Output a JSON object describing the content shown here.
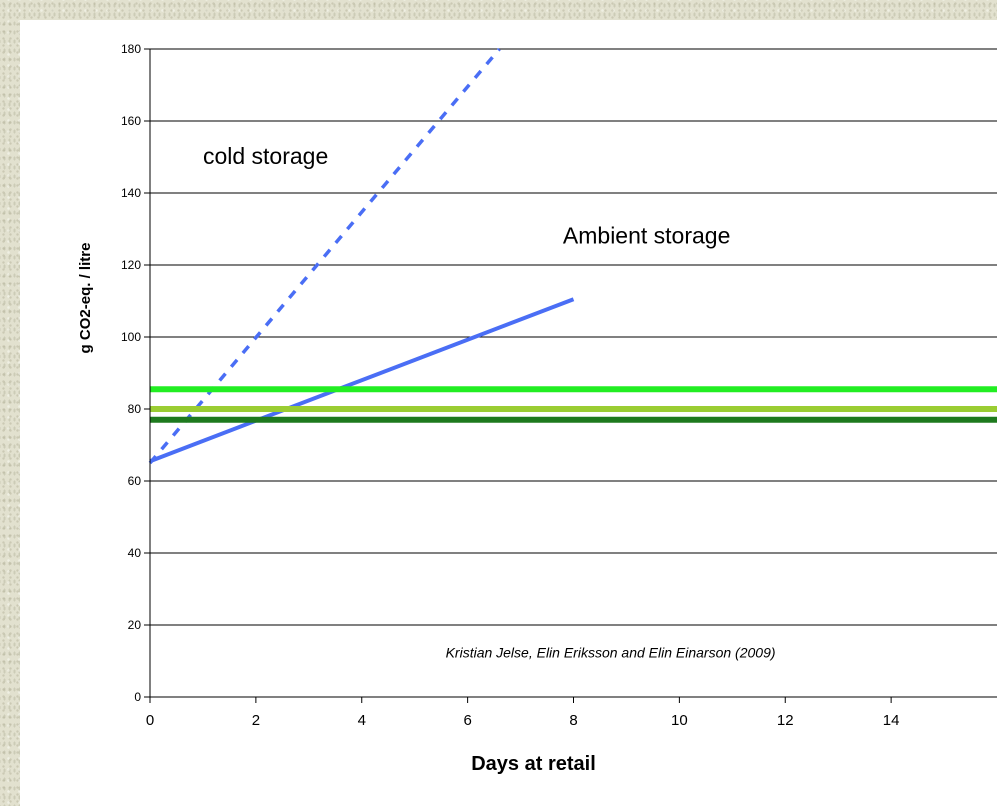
{
  "chart_data": {
    "type": "line",
    "xlabel": "Days at retail",
    "ylabel": "g CO2-eq. / litre",
    "xlim": [
      0,
      16
    ],
    "ylim": [
      0,
      180
    ],
    "x_ticks": [
      0,
      2,
      4,
      6,
      8,
      10,
      12,
      14
    ],
    "y_ticks": [
      0,
      20,
      40,
      60,
      80,
      100,
      120,
      140,
      160,
      180
    ],
    "grid": "horizontal",
    "series": [
      {
        "name": "",
        "style": "dashed",
        "color": "#4a6ef5",
        "x": [
          0,
          6.6
        ],
        "y": [
          65,
          180
        ]
      },
      {
        "name": "",
        "style": "solid",
        "color": "#4a6ef5",
        "x": [
          0,
          8
        ],
        "y": [
          65.5,
          110.5
        ]
      },
      {
        "name": "",
        "style": "solid",
        "color": "#22ee22",
        "x": [
          0,
          16
        ],
        "y": [
          85.5,
          85.5
        ]
      },
      {
        "name": "",
        "style": "solid",
        "color": "#9acd32",
        "x": [
          0,
          16
        ],
        "y": [
          80,
          80
        ]
      },
      {
        "name": "",
        "style": "solid",
        "color": "#1e7a1e",
        "x": [
          0,
          16
        ],
        "y": [
          77,
          77
        ]
      }
    ],
    "annotations": [
      {
        "text": "cold storage",
        "x": 1,
        "y": 148
      },
      {
        "text": "Ambient storage",
        "x": 7.8,
        "y": 126
      }
    ],
    "source_note": {
      "text": "Kristian Jelse, Elin Eriksson and Elin Einarson (2009)",
      "x": 8.7,
      "y": 11
    }
  }
}
